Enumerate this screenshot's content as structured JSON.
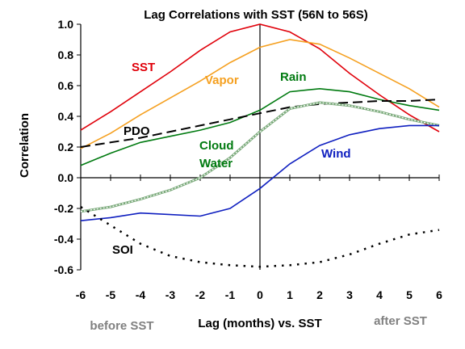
{
  "chart_data": {
    "type": "line",
    "title": "Lag Correlations with SST (56N to 56S)",
    "xlabel": "Lag (months) vs. SST",
    "ylabel": "Correlation",
    "x": [
      -6,
      -5,
      -4,
      -3,
      -2,
      -1,
      0,
      1,
      2,
      3,
      4,
      5,
      6
    ],
    "xlim": [
      -6,
      6
    ],
    "ylim": [
      -0.6,
      1.0
    ],
    "x_ticks": [
      "-6",
      "-5",
      "-4",
      "-3",
      "-2",
      "-1",
      "0",
      "1",
      "2",
      "3",
      "4",
      "5",
      "6"
    ],
    "y_ticks": [
      "1.0",
      "0.8",
      "0.6",
      "0.4",
      "0.2",
      "0.0",
      "-0.2",
      "-0.4",
      "-0.6"
    ],
    "grid": false,
    "notes": {
      "before": "before SST",
      "after": "after SST"
    },
    "series": [
      {
        "name": "SST",
        "color": "#e0000a",
        "style": "solid",
        "values": [
          0.31,
          0.43,
          0.56,
          0.69,
          0.83,
          0.95,
          1.0,
          0.95,
          0.84,
          0.68,
          0.54,
          0.41,
          0.3
        ]
      },
      {
        "name": "Vapor",
        "color": "#f5a020",
        "style": "solid",
        "values": [
          0.19,
          0.29,
          0.41,
          0.52,
          0.63,
          0.75,
          0.85,
          0.9,
          0.87,
          0.78,
          0.68,
          0.58,
          0.46
        ]
      },
      {
        "name": "Rain",
        "color": "#007a10",
        "style": "solid",
        "values": [
          0.08,
          0.16,
          0.23,
          0.27,
          0.31,
          0.36,
          0.44,
          0.56,
          0.58,
          0.56,
          0.51,
          0.47,
          0.44
        ]
      },
      {
        "name": "PDO",
        "color": "#000000",
        "style": "dashed",
        "values": [
          0.2,
          0.23,
          0.26,
          0.3,
          0.34,
          0.38,
          0.42,
          0.46,
          0.48,
          0.49,
          0.5,
          0.5,
          0.51
        ]
      },
      {
        "name": "Cloud Water",
        "color": "#78a878",
        "style": "striped",
        "values": [
          -0.22,
          -0.19,
          -0.14,
          -0.08,
          0.0,
          0.13,
          0.3,
          0.45,
          0.49,
          0.47,
          0.43,
          0.38,
          0.34
        ]
      },
      {
        "name": "Wind",
        "color": "#1020c0",
        "style": "solid",
        "values": [
          -0.28,
          -0.26,
          -0.23,
          -0.24,
          -0.25,
          -0.2,
          -0.07,
          0.09,
          0.21,
          0.28,
          0.32,
          0.34,
          0.34
        ]
      },
      {
        "name": "SOI",
        "color": "#000000",
        "style": "dotted",
        "values": [
          -0.19,
          -0.31,
          -0.43,
          -0.51,
          -0.55,
          -0.57,
          -0.58,
          -0.57,
          -0.55,
          -0.5,
          -0.43,
          -0.37,
          -0.34
        ]
      }
    ]
  }
}
